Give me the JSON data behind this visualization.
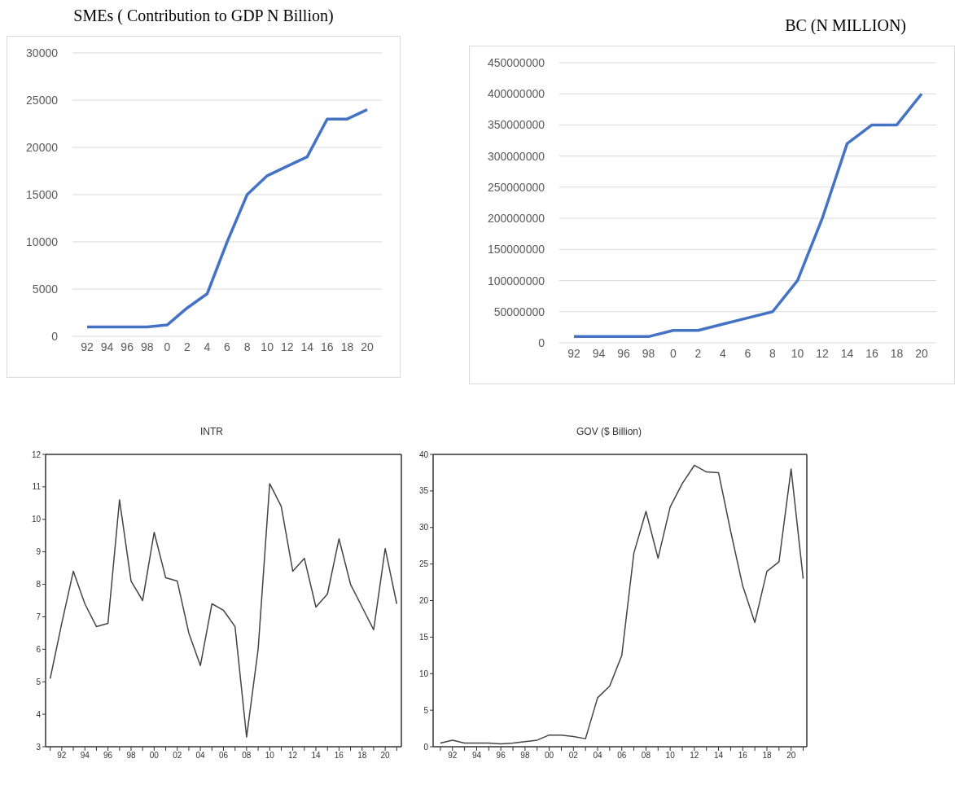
{
  "chart_data": [
    {
      "type": "line",
      "title": "SMEs ( Contribution to GDP N Billion)",
      "categories": [
        "92",
        "94",
        "96",
        "98",
        "0",
        "2",
        "4",
        "6",
        "8",
        "10",
        "12",
        "14",
        "16",
        "18",
        "20"
      ],
      "series": [
        {
          "color": "#4472c4",
          "values": [
            1000,
            1000,
            1000,
            1000,
            1200,
            3000,
            4500,
            10000,
            15000,
            17000,
            18000,
            19000,
            23000,
            23000,
            24000
          ]
        }
      ],
      "ylim": [
        0,
        30000
      ],
      "yticks": [
        0,
        5000,
        10000,
        15000,
        20000,
        25000,
        30000
      ],
      "grid": "y",
      "marker": "none",
      "line_style": "solid"
    },
    {
      "type": "line",
      "title": "BC (N MILLION)",
      "categories": [
        "92",
        "94",
        "96",
        "98",
        "0",
        "2",
        "4",
        "6",
        "8",
        "10",
        "12",
        "14",
        "16",
        "18",
        "20"
      ],
      "series": [
        {
          "color": "#4472c4",
          "values": [
            10000000,
            10000000,
            10000000,
            10000000,
            20000000,
            20000000,
            30000000,
            40000000,
            50000000,
            100000000,
            200000000,
            320000000,
            350000000,
            350000000,
            400000000
          ]
        }
      ],
      "ylim": [
        0,
        450000000
      ],
      "yticks": [
        0,
        50000000,
        100000000,
        150000000,
        200000000,
        250000000,
        300000000,
        350000000,
        400000000,
        450000000
      ],
      "grid": "y",
      "marker": "none",
      "line_style": "solid"
    },
    {
      "type": "line",
      "title": "INTR",
      "x": [
        1991,
        1992,
        1993,
        1994,
        1995,
        1996,
        1997,
        1998,
        1999,
        2000,
        2001,
        2002,
        2003,
        2004,
        2005,
        2006,
        2007,
        2008,
        2009,
        2010,
        2011,
        2012,
        2013,
        2014,
        2015,
        2016,
        2017,
        2018,
        2019,
        2020,
        2021
      ],
      "series": [
        {
          "color": "#444444",
          "values": [
            5.1,
            6.8,
            8.4,
            7.4,
            6.7,
            6.8,
            10.6,
            8.1,
            7.5,
            9.6,
            8.2,
            8.1,
            6.5,
            5.5,
            7.4,
            7.2,
            6.7,
            3.3,
            6.0,
            11.1,
            10.4,
            8.4,
            8.8,
            7.3,
            7.7,
            9.4,
            8.0,
            7.3,
            6.6,
            9.1,
            7.4
          ]
        }
      ],
      "xlim": [
        1990.6,
        2021.4
      ],
      "xticks": [
        {
          "value": 1991,
          "label": null
        },
        {
          "value": 1992,
          "label": "92"
        },
        {
          "value": 1993,
          "label": null
        },
        {
          "value": 1994,
          "label": "94"
        },
        {
          "value": 1995,
          "label": null
        },
        {
          "value": 1996,
          "label": "96"
        },
        {
          "value": 1997,
          "label": null
        },
        {
          "value": 1998,
          "label": "98"
        },
        {
          "value": 1999,
          "label": null
        },
        {
          "value": 2000,
          "label": "00"
        },
        {
          "value": 2001,
          "label": null
        },
        {
          "value": 2002,
          "label": "02"
        },
        {
          "value": 2003,
          "label": null
        },
        {
          "value": 2004,
          "label": "04"
        },
        {
          "value": 2005,
          "label": null
        },
        {
          "value": 2006,
          "label": "06"
        },
        {
          "value": 2007,
          "label": null
        },
        {
          "value": 2008,
          "label": "08"
        },
        {
          "value": 2009,
          "label": null
        },
        {
          "value": 2010,
          "label": "10"
        },
        {
          "value": 2011,
          "label": null
        },
        {
          "value": 2012,
          "label": "12"
        },
        {
          "value": 2013,
          "label": null
        },
        {
          "value": 2014,
          "label": "14"
        },
        {
          "value": 2015,
          "label": null
        },
        {
          "value": 2016,
          "label": "16"
        },
        {
          "value": 2017,
          "label": null
        },
        {
          "value": 2018,
          "label": "18"
        },
        {
          "value": 2019,
          "label": null
        },
        {
          "value": 2020,
          "label": "20"
        },
        {
          "value": 2021,
          "label": null
        }
      ],
      "ylim": [
        3,
        12
      ],
      "yticks": [
        3,
        4,
        5,
        6,
        7,
        8,
        9,
        10,
        11,
        12
      ],
      "grid": false,
      "marker": "none",
      "line_style": "solid"
    },
    {
      "type": "line",
      "title": "GOV ($ Billion)",
      "x": [
        1991,
        1992,
        1993,
        1994,
        1995,
        1996,
        1997,
        1998,
        1999,
        2000,
        2001,
        2002,
        2003,
        2004,
        2005,
        2006,
        2007,
        2008,
        2009,
        2010,
        2011,
        2012,
        2013,
        2014,
        2015,
        2016,
        2017,
        2018,
        2019,
        2020,
        2021
      ],
      "series": [
        {
          "color": "#444444",
          "values": [
            0.5,
            0.9,
            0.5,
            0.5,
            0.5,
            0.4,
            0.5,
            0.7,
            0.9,
            1.6,
            1.6,
            1.4,
            1.1,
            6.7,
            8.3,
            12.5,
            26.5,
            32.2,
            25.8,
            32.8,
            36.0,
            38.5,
            37.6,
            37.5,
            29.5,
            22.0,
            17.0,
            24.0,
            25.3,
            38.0,
            23.0
          ]
        }
      ],
      "xlim": [
        1990.4,
        2021.3
      ],
      "xticks": [
        {
          "value": 1991,
          "label": null
        },
        {
          "value": 1992,
          "label": "92"
        },
        {
          "value": 1993,
          "label": null
        },
        {
          "value": 1994,
          "label": "94"
        },
        {
          "value": 1995,
          "label": null
        },
        {
          "value": 1996,
          "label": "96"
        },
        {
          "value": 1997,
          "label": null
        },
        {
          "value": 1998,
          "label": "98"
        },
        {
          "value": 1999,
          "label": null
        },
        {
          "value": 2000,
          "label": "00"
        },
        {
          "value": 2001,
          "label": null
        },
        {
          "value": 2002,
          "label": "02"
        },
        {
          "value": 2003,
          "label": null
        },
        {
          "value": 2004,
          "label": "04"
        },
        {
          "value": 2005,
          "label": null
        },
        {
          "value": 2006,
          "label": "06"
        },
        {
          "value": 2007,
          "label": null
        },
        {
          "value": 2008,
          "label": "08"
        },
        {
          "value": 2009,
          "label": null
        },
        {
          "value": 2010,
          "label": "10"
        },
        {
          "value": 2011,
          "label": null
        },
        {
          "value": 2012,
          "label": "12"
        },
        {
          "value": 2013,
          "label": null
        },
        {
          "value": 2014,
          "label": "14"
        },
        {
          "value": 2015,
          "label": null
        },
        {
          "value": 2016,
          "label": "16"
        },
        {
          "value": 2017,
          "label": null
        },
        {
          "value": 2018,
          "label": "18"
        },
        {
          "value": 2019,
          "label": null
        },
        {
          "value": 2020,
          "label": "20"
        },
        {
          "value": 2021,
          "label": null
        }
      ],
      "ylim": [
        0,
        40
      ],
      "yticks": [
        0,
        5,
        10,
        15,
        20,
        25,
        30,
        35,
        40
      ],
      "grid": false,
      "marker": "none",
      "line_style": "solid"
    }
  ]
}
